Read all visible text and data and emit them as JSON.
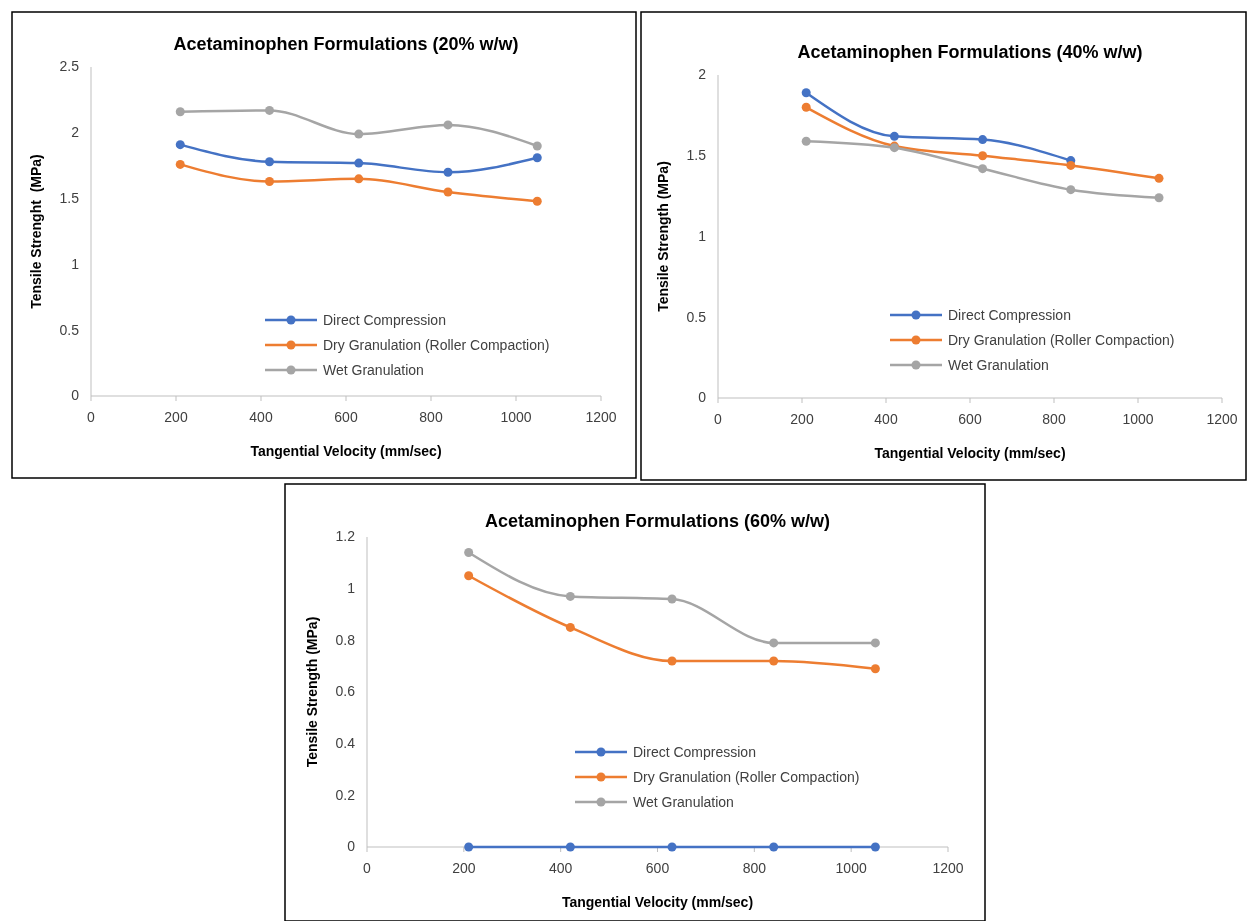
{
  "chart_data": [
    {
      "type": "line",
      "title": "Acetaminophen Formulations (20% w/w)",
      "xlabel": "Tangential Velocity (mm/sec)",
      "ylabel": "Tensile Strenght  (MPa)",
      "x": [
        210,
        420,
        630,
        840,
        1050
      ],
      "xlim": [
        0,
        1200
      ],
      "xticks": [
        0,
        200,
        400,
        600,
        800,
        1000,
        1200
      ],
      "ylim": [
        0,
        2.5
      ],
      "yticks": [
        0,
        0.5,
        1,
        1.5,
        2,
        2.5
      ],
      "grid": false,
      "legend": "bottom",
      "marker": "circle",
      "line_style": "solid",
      "series": [
        {
          "name": "Direct Compression",
          "color": "#4472c4",
          "values": [
            1.91,
            1.78,
            1.77,
            1.7,
            1.81
          ]
        },
        {
          "name": "Dry Granulation (Roller Compaction)",
          "color": "#ed7d31",
          "values": [
            1.76,
            1.63,
            1.65,
            1.55,
            1.48
          ]
        },
        {
          "name": "Wet Granulation",
          "color": "#a5a5a5",
          "values": [
            2.16,
            2.17,
            1.99,
            2.06,
            1.9
          ]
        }
      ]
    },
    {
      "type": "line",
      "title": "Acetaminophen Formulations (40% w/w)",
      "xlabel": "Tangential Velocity (mm/sec)",
      "ylabel": "Tensile Strength (MPa)",
      "x": [
        210,
        420,
        630,
        840,
        1050
      ],
      "xlim": [
        0,
        1200
      ],
      "xticks": [
        0,
        200,
        400,
        600,
        800,
        1000,
        1200
      ],
      "ylim": [
        0,
        2
      ],
      "yticks": [
        0,
        0.5,
        1,
        1.5,
        2
      ],
      "grid": false,
      "legend": "bottom",
      "marker": "circle",
      "line_style": "solid",
      "series": [
        {
          "name": "Direct Compression",
          "color": "#4472c4",
          "values": [
            1.89,
            1.62,
            1.6,
            1.47,
            null
          ]
        },
        {
          "name": "Dry Granulation (Roller Compaction)",
          "color": "#ed7d31",
          "values": [
            1.8,
            1.56,
            1.5,
            1.44,
            1.36
          ]
        },
        {
          "name": "Wet Granulation",
          "color": "#a5a5a5",
          "values": [
            1.59,
            1.55,
            1.42,
            1.29,
            1.24
          ]
        }
      ]
    },
    {
      "type": "line",
      "title": "Acetaminophen Formulations (60% w/w)",
      "xlabel": "Tangential Velocity (mm/sec)",
      "ylabel": "Tensile Strength (MPa)",
      "x": [
        210,
        420,
        630,
        840,
        1050
      ],
      "xlim": [
        0,
        1200
      ],
      "xticks": [
        0,
        200,
        400,
        600,
        800,
        1000,
        1200
      ],
      "ylim": [
        0,
        1.2
      ],
      "yticks": [
        0,
        0.2,
        0.4,
        0.6,
        0.8,
        1,
        1.2
      ],
      "grid": false,
      "legend": "bottom",
      "marker": "circle",
      "line_style": "solid",
      "series": [
        {
          "name": "Direct Compression",
          "color": "#4472c4",
          "values": [
            0,
            0,
            0,
            0,
            0
          ]
        },
        {
          "name": "Dry Granulation (Roller Compaction)",
          "color": "#ed7d31",
          "values": [
            1.05,
            0.85,
            0.72,
            0.72,
            0.69
          ]
        },
        {
          "name": "Wet Granulation",
          "color": "#a5a5a5",
          "values": [
            1.14,
            0.97,
            0.96,
            0.79,
            0.79
          ]
        }
      ]
    }
  ]
}
